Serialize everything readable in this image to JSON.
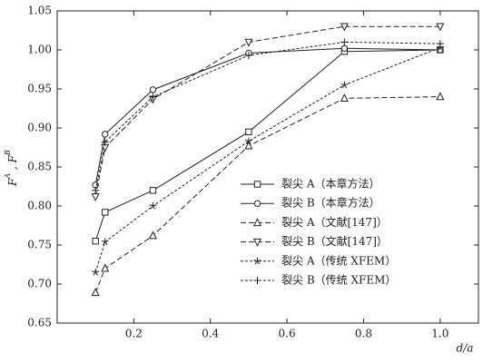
{
  "chart_data": {
    "type": "line",
    "x_label": "d/a",
    "y_label": [
      "F",
      "A",
      " , F",
      "B"
    ],
    "x": [
      0.1,
      0.125,
      0.25,
      0.5,
      0.75,
      1.0
    ],
    "series": [
      {
        "name": "裂尖 A（本章方法）",
        "color": "#222222",
        "marker": "square",
        "dash": "solid",
        "values": [
          0.755,
          0.792,
          0.82,
          0.895,
          0.998,
          1.0
        ]
      },
      {
        "name": "裂尖 B（本章方法）",
        "color": "#222222",
        "marker": "circle",
        "dash": "solid",
        "values": [
          0.827,
          0.892,
          0.949,
          0.996,
          1.002,
          1.0
        ]
      },
      {
        "name": "裂尖 A（文献[147]）",
        "color": "#222222",
        "marker": "triangle-up",
        "dash": "dashed",
        "values": [
          0.689,
          0.72,
          0.762,
          0.877,
          0.938,
          0.94
        ]
      },
      {
        "name": "裂尖 B（文献[147]）",
        "color": "#222222",
        "marker": "triangle-down",
        "dash": "dashed",
        "values": [
          0.812,
          0.875,
          0.937,
          1.01,
          1.03,
          1.03
        ]
      },
      {
        "name": "裂尖 A（传统 XFEM）",
        "color": "#222222",
        "marker": "star",
        "dash": "dotted",
        "values": [
          0.715,
          0.754,
          0.8,
          0.883,
          0.955,
          1.003
        ]
      },
      {
        "name": "裂尖 B（传统 XFEM）",
        "color": "#222222",
        "marker": "plus",
        "dash": "dotted",
        "values": [
          0.82,
          0.882,
          0.94,
          0.993,
          1.01,
          1.008
        ]
      }
    ],
    "xlim": [
      0,
      1.1
    ],
    "ylim": [
      0.65,
      1.05
    ],
    "xticks": [
      0.2,
      0.4,
      0.6,
      0.8,
      {
        "value": 1,
        "label": "1.0"
      }
    ],
    "yticks": [
      {
        "value": 0.65,
        "label": "0.65"
      },
      {
        "value": 0.7,
        "label": "0.70"
      },
      {
        "value": 0.75,
        "label": "0.75"
      },
      {
        "value": 0.8,
        "label": "0.80"
      },
      {
        "value": 0.85,
        "label": "0.85"
      },
      {
        "value": 0.9,
        "label": "0.90"
      },
      {
        "value": 0.95,
        "label": "0.95"
      },
      {
        "value": 1,
        "label": "1.00"
      },
      {
        "value": 1.05,
        "label": "1.05"
      }
    ],
    "grid": false,
    "legend": "lower-right"
  }
}
